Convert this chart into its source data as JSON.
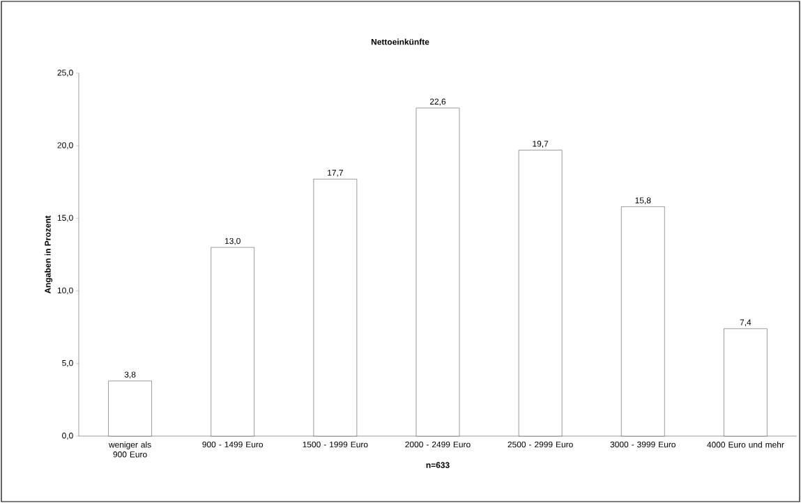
{
  "chart_data": {
    "type": "bar",
    "title": "Nettoeinkünfte",
    "xlabel": "n=633",
    "ylabel": "Angaben in Prozent",
    "categories": [
      "weniger als 900 Euro",
      "900 - 1499 Euro",
      "1500 - 1999 Euro",
      "2000 - 2499 Euro",
      "2500 - 2999 Euro",
      "3000 - 3999 Euro",
      "4000 Euro und mehr"
    ],
    "values": [
      3.8,
      13.0,
      17.7,
      22.6,
      19.7,
      15.8,
      7.4
    ],
    "value_labels": [
      "3,8",
      "13,0",
      "17,7",
      "22,6",
      "19,7",
      "15,8",
      "7,4"
    ],
    "color": "#ffffff",
    "ylim": [
      0,
      25
    ],
    "yticks": [
      {
        "value": 0,
        "label": "0,0"
      },
      {
        "value": 5,
        "label": "5,0"
      },
      {
        "value": 10,
        "label": "10,0"
      },
      {
        "value": 15,
        "label": "15,0"
      },
      {
        "value": 20,
        "label": "20,0"
      },
      {
        "value": 25,
        "label": "25,0"
      }
    ],
    "grid": false
  }
}
